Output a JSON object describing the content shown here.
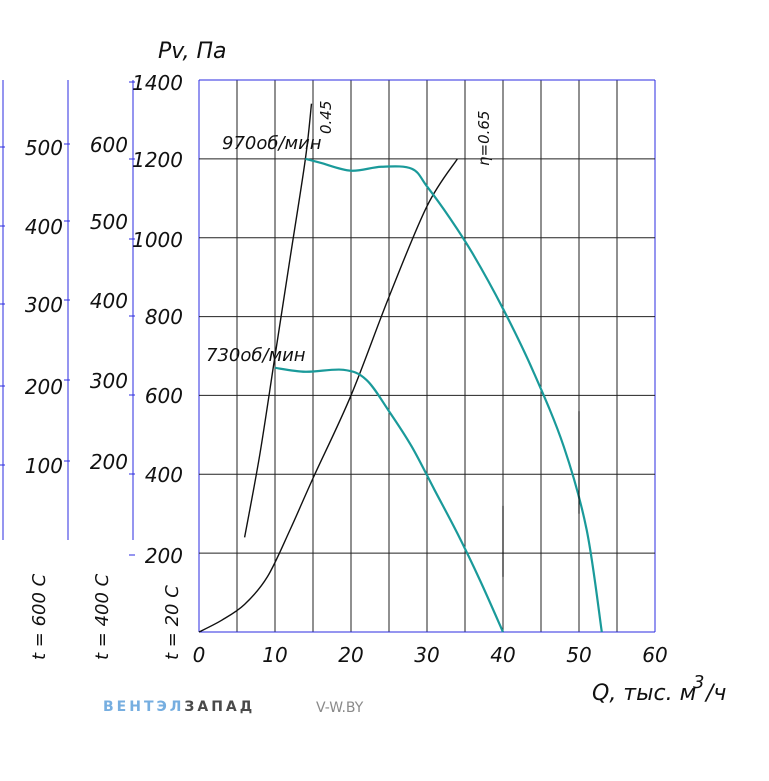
{
  "chart_data": {
    "type": "line",
    "ylabel": "Pv, Па",
    "xlabel": "Q, тыс. м³/ч",
    "xlabel_main": "Q, тыс. м",
    "xlabel_sup": "3",
    "xlabel_tail": "/ч",
    "xlim": [
      0,
      60
    ],
    "ylim": [
      0,
      1400
    ],
    "x_ticks": [
      0,
      10,
      20,
      30,
      40,
      50,
      60
    ],
    "y_ticks": [
      200,
      400,
      600,
      800,
      1000,
      1200,
      1400
    ],
    "grid": true,
    "temperature_scales": [
      {
        "label": "t = 20 С",
        "ticks": [
          200,
          400,
          600,
          800,
          1000,
          1200,
          1400
        ]
      },
      {
        "label": "t = 400 С",
        "ticks": [
          200,
          300,
          400,
          500,
          600
        ]
      },
      {
        "label": "t = 600 С",
        "ticks": [
          100,
          200,
          300,
          400,
          500
        ]
      }
    ],
    "series": [
      {
        "name": "970об/мин",
        "color": "#1a9a9a",
        "points": [
          [
            14,
            1200
          ],
          [
            16,
            1190
          ],
          [
            20,
            1170
          ],
          [
            24,
            1180
          ],
          [
            28,
            1175
          ],
          [
            30,
            1130
          ],
          [
            33,
            1050
          ],
          [
            36,
            960
          ],
          [
            40,
            820
          ],
          [
            44,
            660
          ],
          [
            48,
            470
          ],
          [
            51,
            260
          ],
          [
            53,
            0
          ]
        ]
      },
      {
        "name": "730об/мин",
        "color": "#1a9a9a",
        "points": [
          [
            10,
            670
          ],
          [
            14,
            660
          ],
          [
            19,
            665
          ],
          [
            22,
            640
          ],
          [
            25,
            560
          ],
          [
            28,
            470
          ],
          [
            31,
            360
          ],
          [
            34,
            250
          ],
          [
            37,
            130
          ],
          [
            40,
            0
          ]
        ]
      }
    ],
    "efficiency_lines": [
      {
        "name": "0.45",
        "points": [
          [
            6,
            240
          ],
          [
            8,
            450
          ],
          [
            10,
            700
          ],
          [
            12,
            950
          ],
          [
            14,
            1200
          ],
          [
            14.8,
            1340
          ]
        ]
      },
      {
        "name": "η=0.65",
        "points": [
          [
            0,
            0
          ],
          [
            3,
            30
          ],
          [
            6,
            70
          ],
          [
            9,
            140
          ],
          [
            12,
            260
          ],
          [
            15,
            390
          ],
          [
            20,
            600
          ],
          [
            25,
            850
          ],
          [
            30,
            1080
          ],
          [
            34,
            1200
          ]
        ]
      }
    ],
    "marker_lines": [
      {
        "x": 40,
        "y_from": 140,
        "y_to": 320
      },
      {
        "x": 50,
        "y_from": 300,
        "y_to": 560
      }
    ]
  },
  "brand": {
    "part1": "ВЕНТЭЛ",
    "part2": "ЗАПАД",
    "site": "V-W.BY"
  }
}
